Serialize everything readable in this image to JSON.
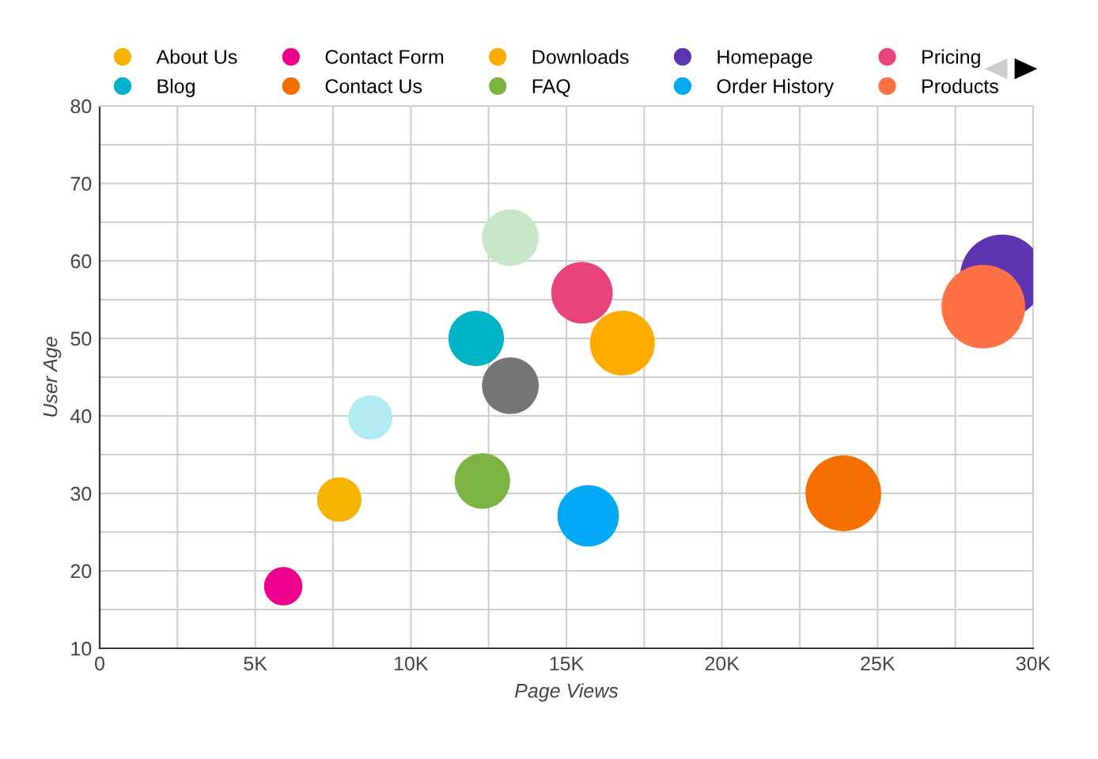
{
  "chart_data": {
    "type": "bubble",
    "xlabel": "Page Views",
    "ylabel": "User Age",
    "xlim": [
      0,
      30000
    ],
    "ylim": [
      10,
      80
    ],
    "xticks": [
      {
        "value": 0,
        "label": "0"
      },
      {
        "value": 5000,
        "label": "5K"
      },
      {
        "value": 10000,
        "label": "10K"
      },
      {
        "value": 15000,
        "label": "15K"
      },
      {
        "value": 20000,
        "label": "20K"
      },
      {
        "value": 25000,
        "label": "25K"
      },
      {
        "value": 30000,
        "label": "30K"
      }
    ],
    "yticks": [
      10,
      20,
      30,
      40,
      50,
      60,
      70,
      80
    ],
    "grid": true,
    "legend": "top",
    "series": [
      {
        "name": "About Us",
        "color": "#f4b400",
        "x": [
          7700
        ],
        "values": [
          29.2
        ],
        "sizes": [
          0.28
        ]
      },
      {
        "name": "Blog",
        "color": "#00b4c8",
        "x": [
          12100
        ],
        "values": [
          50
        ],
        "sizes": [
          0.44
        ]
      },
      {
        "name": "Contact Form",
        "color": "#ec008c",
        "x": [
          5900
        ],
        "values": [
          18
        ],
        "sizes": [
          0.21
        ]
      },
      {
        "name": "Contact Us",
        "color": "#f57000",
        "x": [
          23900
        ],
        "values": [
          30
        ],
        "sizes": [
          0.82
        ]
      },
      {
        "name": "Downloads",
        "color": "#ffab00",
        "x": [
          16800
        ],
        "values": [
          49.4
        ],
        "sizes": [
          0.6
        ]
      },
      {
        "name": "FAQ",
        "color": "#7cb342",
        "x": [
          12300
        ],
        "values": [
          31.6
        ],
        "sizes": [
          0.44
        ]
      },
      {
        "name": "Homepage",
        "color": "#5e35b1",
        "x": [
          29000
        ],
        "values": [
          58
        ],
        "sizes": [
          1
        ]
      },
      {
        "name": "Order History",
        "color": "#03a9f4",
        "x": [
          15700
        ],
        "values": [
          27.1
        ],
        "sizes": [
          0.54
        ]
      },
      {
        "name": "Pricing",
        "color": "#e8437b",
        "x": [
          15500
        ],
        "values": [
          55.9
        ],
        "sizes": [
          0.54
        ]
      },
      {
        "name": "Products",
        "color": "#ff7043",
        "x": [
          28400
        ],
        "values": [
          54.1
        ],
        "sizes": [
          1
        ]
      },
      {
        "color": "#b2ebf2",
        "x": [
          8700
        ],
        "values": [
          39.8
        ],
        "sizes": [
          0.28
        ]
      },
      {
        "color": "#757575",
        "x": [
          13200
        ],
        "values": [
          43.9
        ],
        "sizes": [
          0.46
        ]
      },
      {
        "color": "#c8e6c9",
        "x": [
          13200
        ],
        "values": [
          63
        ],
        "sizes": [
          0.46
        ]
      }
    ]
  }
}
